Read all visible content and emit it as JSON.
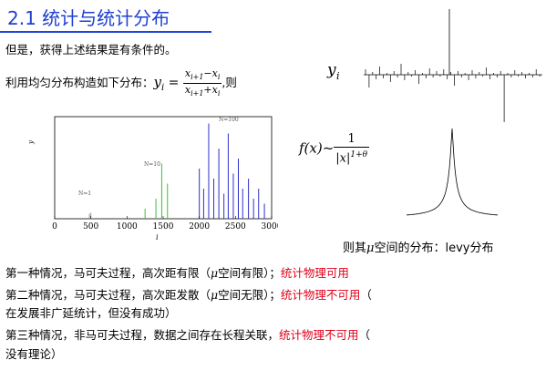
{
  "title": "2.1 统计与统计分布",
  "intro": "但是，获得上述结果是有条件的。",
  "construct": {
    "prefix": "利用均匀分布构造如下分布：",
    "lhs": "y",
    "lhs_sub": "i",
    "eq": " = ",
    "num": "x",
    "num_sub": "i+1",
    "num_minus": "−x",
    "num_sub2": "i",
    "den": "x",
    "den_sub": "i+1",
    "den_plus": "+x",
    "den_sub2": "i",
    "suffix": ",则"
  },
  "yi_label": "y",
  "yi_sub": "i",
  "fx": {
    "lhs": "f(x)~",
    "num": "1",
    "den": "|x|",
    "den_exp": "1+θ"
  },
  "levy_caption": {
    "pre": "则其",
    "mu": "μ",
    "post": "空间的分布：levy分布"
  },
  "cases": [
    {
      "text": "第一种情况，马可夫过程，高次距有限（",
      "mu": "μ",
      "text2": "空间有限）；",
      "red": "统计物理可用",
      "tail": ""
    },
    {
      "text": "第二种情况，马可夫过程，高次距发散（",
      "mu": "μ",
      "text2": "空间无限）；",
      "red": "统计物理不可用",
      "tail": "（"
    },
    {
      "text": "在发展非广延统计，但没有成功）",
      "mu": "",
      "text2": "",
      "red": "",
      "tail": ""
    },
    {
      "text": "第三种情况，非马可夫过程，数据之间存在长程关联，",
      "mu": "",
      "text2": "",
      "red": "统计物理不可用",
      "tail": "（"
    },
    {
      "text": "没有理论）",
      "mu": "",
      "text2": "",
      "red": "",
      "tail": ""
    }
  ],
  "chart_data": {
    "type": "bar",
    "xlabel": "i",
    "ylabel": "y",
    "xlim": [
      0,
      3000
    ],
    "x_ticks": [
      "0",
      "500",
      "1000",
      "1500",
      "2000",
      "2500",
      "3000"
    ],
    "annotations": [
      "N=1",
      "N=10",
      "N=100"
    ],
    "series": [
      {
        "name": "N=1",
        "color": "#9a9a9a",
        "x": [
          480,
          500
        ],
        "values": [
          0.05,
          0.06
        ]
      },
      {
        "name": "N=10",
        "color": "#39c13a",
        "x": [
          1250,
          1400,
          1480,
          1560
        ],
        "values": [
          0.1,
          0.2,
          0.55,
          0.35
        ]
      },
      {
        "name": "N=100",
        "color": "#2f2fc9",
        "x": [
          2000,
          2060,
          2130,
          2200,
          2270,
          2340,
          2400,
          2470,
          2540,
          2600,
          2680,
          2750,
          2820,
          2900
        ],
        "values": [
          0.5,
          0.3,
          0.95,
          0.4,
          0.7,
          0.25,
          0.85,
          0.45,
          0.6,
          0.3,
          0.4,
          0.2,
          0.3,
          0.15
        ]
      }
    ]
  }
}
